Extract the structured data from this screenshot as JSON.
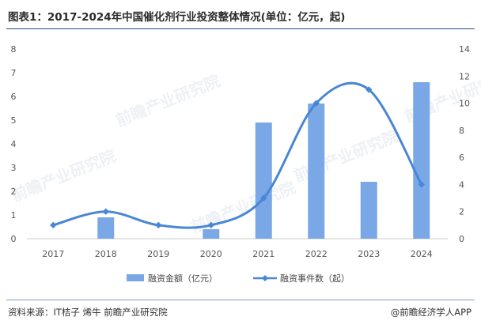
{
  "title": "图表1：2017-2024年中国催化剂行业投资整体情况(单位：亿元，起)",
  "source": "资料来源：IT桔子 烯牛 前瞻产业研究院",
  "brand": "@前瞻经济学人APP",
  "watermark": "前瞻产业研究院",
  "colors": {
    "bar": "#7aa7e6",
    "line": "#4a86d6",
    "title_rule": "#1f4f8c",
    "axis_text": "#555555"
  },
  "chart_data": {
    "type": "bar",
    "categories": [
      "2017",
      "2018",
      "2019",
      "2020",
      "2021",
      "2022",
      "2023",
      "2024"
    ],
    "series": [
      {
        "name": "融资金额（亿元）",
        "type": "bar",
        "axis": "left",
        "values": [
          0,
          0.9,
          0,
          0.4,
          4.9,
          5.7,
          2.4,
          6.6
        ]
      },
      {
        "name": "融资事件数（起）",
        "type": "line",
        "axis": "right",
        "smooth": true,
        "values": [
          1,
          2,
          1,
          1,
          3,
          10,
          11,
          4
        ]
      }
    ],
    "y_left": {
      "min": 0,
      "max": 8,
      "ticks": [
        "0",
        "1",
        "2",
        "3",
        "4",
        "5",
        "6",
        "7",
        "8"
      ]
    },
    "y_right": {
      "min": 0,
      "max": 14,
      "ticks": [
        "0",
        "2",
        "4",
        "6",
        "8",
        "10",
        "12",
        "14"
      ]
    },
    "legend_position": "bottom",
    "grid": false
  }
}
